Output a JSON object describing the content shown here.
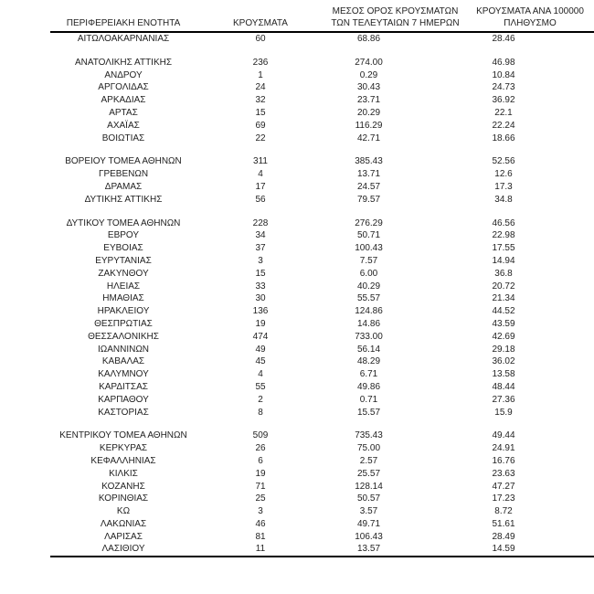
{
  "page": {
    "background_color": "#ffffff",
    "text_color": "#1f1f1f",
    "rule_color": "#000000"
  },
  "table": {
    "columns": [
      {
        "label": "ΠΕΡΙΦΕΡΕΙΑΚΗ ΕΝΟΤΗΤΑ",
        "line1": "",
        "line2": "ΠΕΡΙΦΕΡΕΙΑΚΗ ΕΝΟΤΗΤΑ"
      },
      {
        "label": "ΚΡΟΥΣΜΑΤΑ",
        "line1": "",
        "line2": "ΚΡΟΥΣΜΑΤΑ"
      },
      {
        "label": "ΜΕΣΟΣ ΟΡΟΣ ΚΡΟΥΣΜΑΤΩΝ ΤΩΝ ΤΕΛΕΥΤΑΙΩΝ 7 ΗΜΕΡΩΝ",
        "line1": "ΜΕΣΟΣ ΟΡΟΣ ΚΡΟΥΣΜΑΤΩΝ",
        "line2": "ΤΩΝ ΤΕΛΕΥΤΑΙΩΝ 7 ΗΜΕΡΩΝ"
      },
      {
        "label": "ΚΡΟΥΣΜΑΤΑ ΑΝΑ 100000 ΠΛΗΘΥΣΜΟ",
        "line1": "ΚΡΟΥΣΜΑΤΑ ΑΝΑ 100000",
        "line2": "ΠΛΗΘΥΣΜΟ"
      }
    ],
    "groups": [
      [
        {
          "region": "ΑΙΤΩΛΟΑΚΑΡΝΑΝΙΑΣ",
          "cases": "60",
          "avg7": "68.86",
          "per100k": "28.46"
        }
      ],
      [
        {
          "region": "ΑΝΑΤΟΛΙΚΗΣ ΑΤΤΙΚΗΣ",
          "cases": "236",
          "avg7": "274.00",
          "per100k": "46.98"
        },
        {
          "region": "ΑΝΔΡΟΥ",
          "cases": "1",
          "avg7": "0.29",
          "per100k": "10.84"
        },
        {
          "region": "ΑΡΓΟΛΙΔΑΣ",
          "cases": "24",
          "avg7": "30.43",
          "per100k": "24.73"
        },
        {
          "region": "ΑΡΚΑΔΙΑΣ",
          "cases": "32",
          "avg7": "23.71",
          "per100k": "36.92"
        },
        {
          "region": "ΑΡΤΑΣ",
          "cases": "15",
          "avg7": "20.29",
          "per100k": "22.1"
        },
        {
          "region": "ΑΧΑΪΑΣ",
          "cases": "69",
          "avg7": "116.29",
          "per100k": "22.24"
        },
        {
          "region": "ΒΟΙΩΤΙΑΣ",
          "cases": "22",
          "avg7": "42.71",
          "per100k": "18.66"
        }
      ],
      [
        {
          "region": "ΒΟΡΕΙΟΥ ΤΟΜΕΑ ΑΘΗΝΩΝ",
          "cases": "311",
          "avg7": "385.43",
          "per100k": "52.56"
        },
        {
          "region": "ΓΡΕΒΕΝΩΝ",
          "cases": "4",
          "avg7": "13.71",
          "per100k": "12.6"
        },
        {
          "region": "ΔΡΑΜΑΣ",
          "cases": "17",
          "avg7": "24.57",
          "per100k": "17.3"
        },
        {
          "region": "ΔΥΤΙΚΗΣ ΑΤΤΙΚΗΣ",
          "cases": "56",
          "avg7": "79.57",
          "per100k": "34.8"
        }
      ],
      [
        {
          "region": "ΔΥΤΙΚΟΥ ΤΟΜΕΑ ΑΘΗΝΩΝ",
          "cases": "228",
          "avg7": "276.29",
          "per100k": "46.56"
        },
        {
          "region": "ΕΒΡΟΥ",
          "cases": "34",
          "avg7": "50.71",
          "per100k": "22.98"
        },
        {
          "region": "ΕΥΒΟΙΑΣ",
          "cases": "37",
          "avg7": "100.43",
          "per100k": "17.55"
        },
        {
          "region": "ΕΥΡΥΤΑΝΙΑΣ",
          "cases": "3",
          "avg7": "7.57",
          "per100k": "14.94"
        },
        {
          "region": "ΖΑΚΥΝΘΟΥ",
          "cases": "15",
          "avg7": "6.00",
          "per100k": "36.8"
        },
        {
          "region": "ΗΛΕΙΑΣ",
          "cases": "33",
          "avg7": "40.29",
          "per100k": "20.72"
        },
        {
          "region": "ΗΜΑΘΙΑΣ",
          "cases": "30",
          "avg7": "55.57",
          "per100k": "21.34"
        },
        {
          "region": "ΗΡΑΚΛΕΙΟΥ",
          "cases": "136",
          "avg7": "124.86",
          "per100k": "44.52"
        },
        {
          "region": "ΘΕΣΠΡΩΤΙΑΣ",
          "cases": "19",
          "avg7": "14.86",
          "per100k": "43.59"
        },
        {
          "region": "ΘΕΣΣΑΛΟΝΙΚΗΣ",
          "cases": "474",
          "avg7": "733.00",
          "per100k": "42.69"
        },
        {
          "region": "ΙΩΑΝΝΙΝΩΝ",
          "cases": "49",
          "avg7": "56.14",
          "per100k": "29.18"
        },
        {
          "region": "ΚΑΒΑΛΑΣ",
          "cases": "45",
          "avg7": "48.29",
          "per100k": "36.02"
        },
        {
          "region": "ΚΑΛΥΜΝΟΥ",
          "cases": "4",
          "avg7": "6.71",
          "per100k": "13.58"
        },
        {
          "region": "ΚΑΡΔΙΤΣΑΣ",
          "cases": "55",
          "avg7": "49.86",
          "per100k": "48.44"
        },
        {
          "region": "ΚΑΡΠΑΘΟΥ",
          "cases": "2",
          "avg7": "0.71",
          "per100k": "27.36"
        },
        {
          "region": "ΚΑΣΤΟΡΙΑΣ",
          "cases": "8",
          "avg7": "15.57",
          "per100k": "15.9"
        }
      ],
      [
        {
          "region": "ΚΕΝΤΡΙΚΟΥ ΤΟΜΕΑ ΑΘΗΝΩΝ",
          "cases": "509",
          "avg7": "735.43",
          "per100k": "49.44"
        },
        {
          "region": "ΚΕΡΚΥΡΑΣ",
          "cases": "26",
          "avg7": "75.00",
          "per100k": "24.91"
        },
        {
          "region": "ΚΕΦΑΛΛΗΝΙΑΣ",
          "cases": "6",
          "avg7": "2.57",
          "per100k": "16.76"
        },
        {
          "region": "ΚΙΛΚΙΣ",
          "cases": "19",
          "avg7": "25.57",
          "per100k": "23.63"
        },
        {
          "region": "ΚΟΖΑΝΗΣ",
          "cases": "71",
          "avg7": "128.14",
          "per100k": "47.27"
        },
        {
          "region": "ΚΟΡΙΝΘΙΑΣ",
          "cases": "25",
          "avg7": "50.57",
          "per100k": "17.23"
        },
        {
          "region": "ΚΩ",
          "cases": "3",
          "avg7": "3.57",
          "per100k": "8.72"
        },
        {
          "region": "ΛΑΚΩΝΙΑΣ",
          "cases": "46",
          "avg7": "49.71",
          "per100k": "51.61"
        },
        {
          "region": "ΛΑΡΙΣΑΣ",
          "cases": "81",
          "avg7": "106.43",
          "per100k": "28.49"
        },
        {
          "region": "ΛΑΣΙΘΙΟΥ",
          "cases": "11",
          "avg7": "13.57",
          "per100k": "14.59"
        }
      ]
    ]
  }
}
